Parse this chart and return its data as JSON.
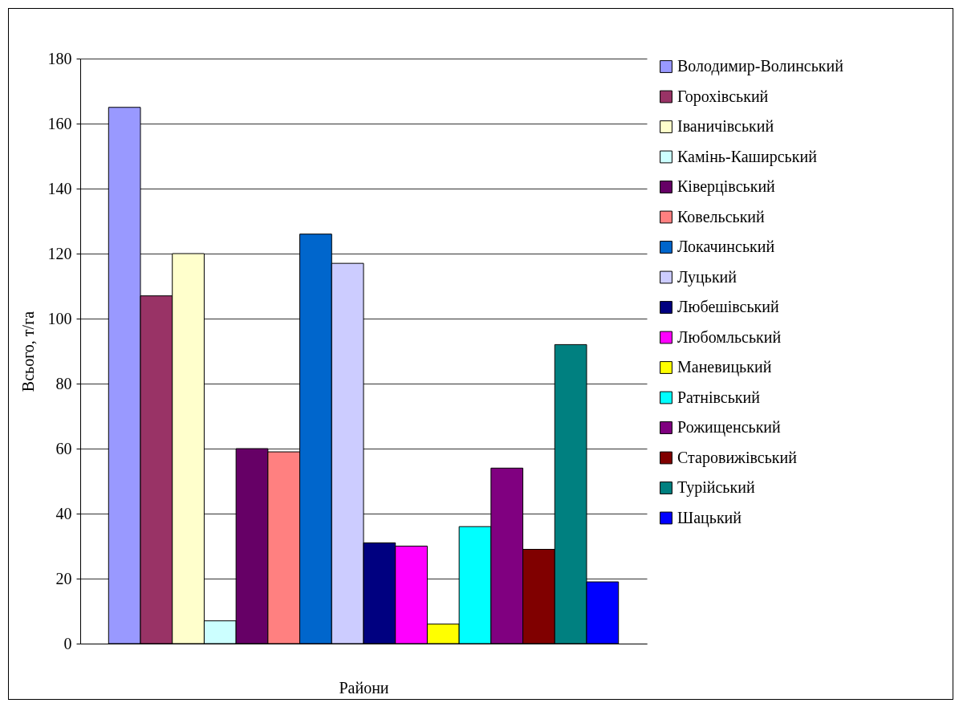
{
  "chart_data": {
    "type": "bar",
    "xlabel": "Райони",
    "ylabel": "Всього, т/га",
    "categories": [
      null
    ],
    "series": [
      {
        "name": "Володимир-Волинський",
        "color": "#9999ff",
        "values": [
          165
        ]
      },
      {
        "name": "Горохівський",
        "color": "#993366",
        "values": [
          107
        ]
      },
      {
        "name": "Іваничівський",
        "color": "#ffffcc",
        "values": [
          120
        ]
      },
      {
        "name": "Камінь-Каширський",
        "color": "#ccffff",
        "values": [
          7
        ]
      },
      {
        "name": "Ківерцівський",
        "color": "#660066",
        "values": [
          60
        ]
      },
      {
        "name": "Ковельський",
        "color": "#ff8080",
        "values": [
          59
        ]
      },
      {
        "name": "Локачинський",
        "color": "#0066cc",
        "values": [
          126
        ]
      },
      {
        "name": "Луцький",
        "color": "#ccccff",
        "values": [
          117
        ]
      },
      {
        "name": "Любешівський",
        "color": "#000080",
        "values": [
          31
        ]
      },
      {
        "name": "Любомльський",
        "color": "#ff00ff",
        "values": [
          30
        ]
      },
      {
        "name": "Маневицький",
        "color": "#ffff00",
        "values": [
          6
        ]
      },
      {
        "name": "Ратнівський",
        "color": "#00ffff",
        "values": [
          36
        ]
      },
      {
        "name": "Рожищенський",
        "color": "#800080",
        "values": [
          54
        ]
      },
      {
        "name": "Старовижівський",
        "color": "#800000",
        "values": [
          29
        ]
      },
      {
        "name": "Турійський",
        "color": "#008080",
        "values": [
          92
        ]
      },
      {
        "name": "Шацький",
        "color": "#0000ff",
        "values": [
          19
        ]
      }
    ],
    "ylim": [
      0,
      180
    ],
    "yticks": [
      0,
      20,
      40,
      60,
      80,
      100,
      120,
      140,
      160,
      180
    ],
    "grid": "y",
    "legend": "right"
  }
}
